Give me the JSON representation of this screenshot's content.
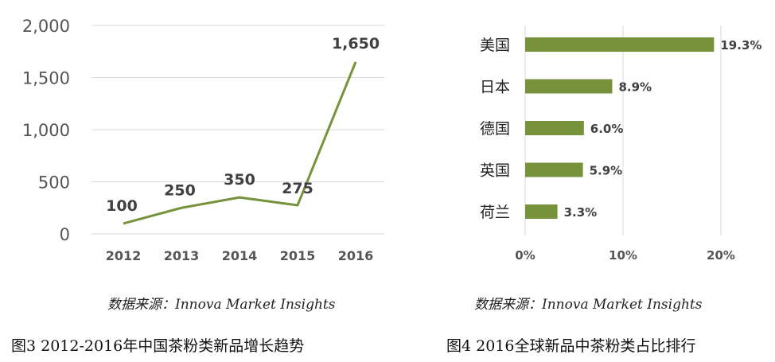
{
  "chart_data": [
    {
      "type": "line",
      "x": [
        "2012",
        "2013",
        "2014",
        "2015",
        "2016"
      ],
      "series": [
        {
          "values": [
            100,
            250,
            350,
            275,
            1650
          ]
        }
      ],
      "data_labels": [
        "100",
        "250",
        "350",
        "275",
        "1,650"
      ],
      "yticks": [
        "0",
        "500",
        "1,000",
        "1,500",
        "2,000"
      ],
      "ylim": [
        0,
        2000
      ],
      "grid": true,
      "color": "#76933c",
      "source": "数据来源：Innova Market Insights",
      "caption": "图3   2012-2016年中国茶粉类新品增长趋势"
    },
    {
      "type": "bar",
      "orientation": "horizontal",
      "categories": [
        "美国",
        "日本",
        "德国",
        "英国",
        "荷兰"
      ],
      "values": [
        19.3,
        8.9,
        6.0,
        5.9,
        3.3
      ],
      "data_labels": [
        "19.3%",
        "8.9%",
        "6.0%",
        "5.9%",
        "3.3%"
      ],
      "xticks": [
        "0%",
        "10%",
        "20%"
      ],
      "xlim": [
        0,
        20
      ],
      "grid": true,
      "color": "#76933c",
      "source": "数据来源：Innova Market Insights",
      "caption": "图4   2016全球新品中茶粉类占比排行"
    }
  ]
}
